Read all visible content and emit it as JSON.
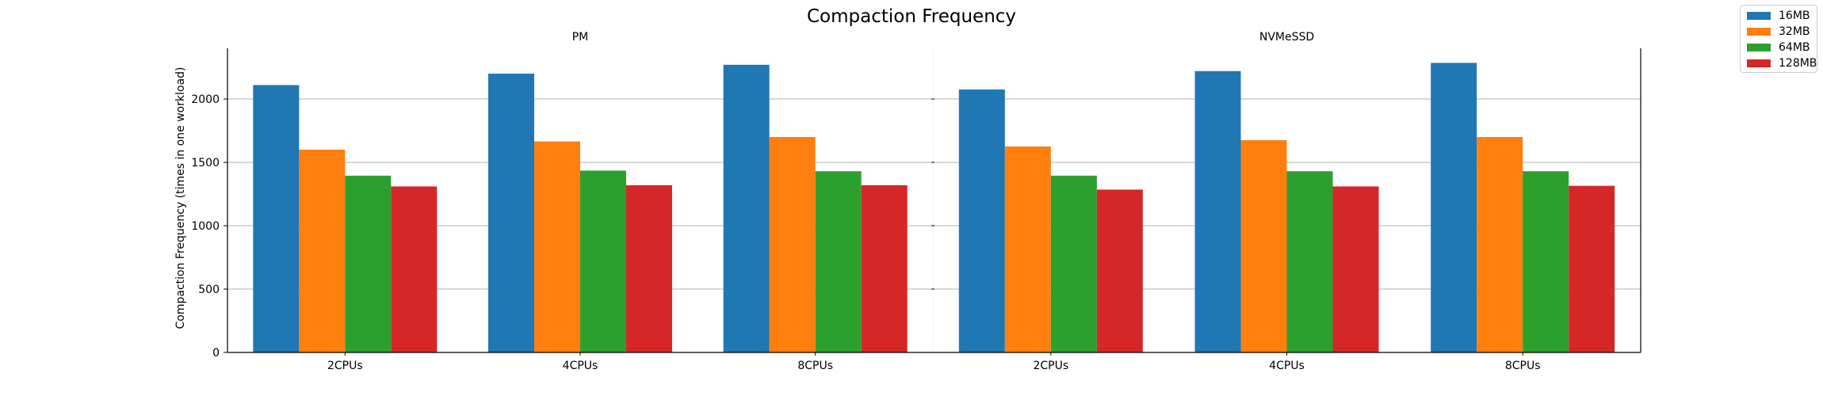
{
  "chart_data": {
    "type": "bar",
    "title": "Compaction Frequency",
    "ylabel": "Compaction Frequency (times in one workload)",
    "xlabel": "",
    "ylim": [
      0,
      2400
    ],
    "yticks": [
      0,
      500,
      1000,
      1500,
      2000
    ],
    "grid": "horizontal",
    "legend_placement": "top-right",
    "panels": [
      {
        "name": "PM",
        "categories": [
          "2CPUs",
          "4CPUs",
          "8CPUs"
        ],
        "series": [
          {
            "name": "16MB",
            "values": [
              2110,
              2200,
              2270
            ]
          },
          {
            "name": "32MB",
            "values": [
              1600,
              1665,
              1700
            ]
          },
          {
            "name": "64MB",
            "values": [
              1395,
              1435,
              1430
            ]
          },
          {
            "name": "128MB",
            "values": [
              1310,
              1320,
              1320
            ]
          }
        ]
      },
      {
        "name": "NVMeSSD",
        "categories": [
          "2CPUs",
          "4CPUs",
          "8CPUs"
        ],
        "series": [
          {
            "name": "16MB",
            "values": [
              2075,
              2220,
              2285
            ]
          },
          {
            "name": "32MB",
            "values": [
              1625,
              1675,
              1700
            ]
          },
          {
            "name": "64MB",
            "values": [
              1395,
              1430,
              1430
            ]
          },
          {
            "name": "128MB",
            "values": [
              1285,
              1310,
              1315
            ]
          }
        ]
      }
    ],
    "colors": [
      "#1f77b4",
      "#ff7f0e",
      "#2ca02c",
      "#d62728"
    ]
  }
}
